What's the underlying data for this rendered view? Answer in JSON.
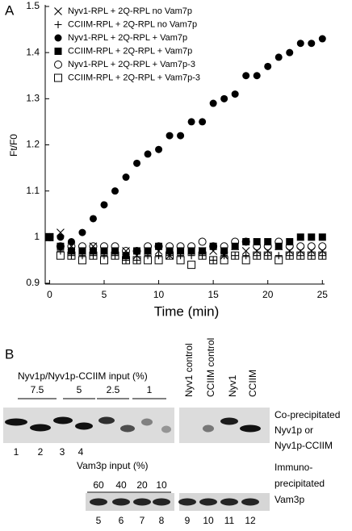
{
  "chart_data": {
    "type": "scatter",
    "panel_label": "A",
    "x_label": "Time (min)",
    "y_label": "Ft/F0",
    "xlim": [
      -0.4,
      25.2
    ],
    "xticks": [
      0,
      5,
      10,
      15,
      20,
      25
    ],
    "ylim": [
      0.9,
      1.5
    ],
    "yticks": [
      0.9,
      1,
      1.1,
      1.2,
      1.3,
      1.4,
      1.5
    ],
    "legend": "upper-left",
    "x": [
      0,
      1,
      2,
      3,
      4,
      5,
      6,
      7,
      8,
      9,
      10,
      11,
      12,
      13,
      14,
      15,
      16,
      17,
      18,
      19,
      20,
      21,
      22,
      23,
      24,
      25
    ],
    "series": [
      {
        "name": "Nyv1-RPL + 2Q-RPL no Vam7p",
        "color": "#000000",
        "marker": "cross",
        "values": [
          1.0,
          1.01,
          0.98,
          0.97,
          0.98,
          0.97,
          0.97,
          0.97,
          0.96,
          0.97,
          0.97,
          0.96,
          0.97,
          0.97,
          0.97,
          0.97,
          0.96,
          0.98,
          0.97,
          0.97,
          0.97,
          0.98,
          0.97,
          0.97,
          0.97,
          0.97
        ]
      },
      {
        "name": "CCIIM-RPL + 2Q-RPL no Vam7p",
        "color": "#000000",
        "marker": "plus",
        "values": [
          1.0,
          0.97,
          0.96,
          0.96,
          0.96,
          0.96,
          0.96,
          0.95,
          0.95,
          0.96,
          0.96,
          0.96,
          0.96,
          0.96,
          0.96,
          0.95,
          0.96,
          0.96,
          0.96,
          0.96,
          0.96,
          0.96,
          0.96,
          0.96,
          0.96,
          0.96
        ]
      },
      {
        "name": "Nyv1-RPL + 2Q-RPL + Vam7p",
        "color": "#000000",
        "marker": "filled-circle",
        "values": [
          1.0,
          1.0,
          0.99,
          1.01,
          1.04,
          1.07,
          1.1,
          1.13,
          1.16,
          1.18,
          1.19,
          1.22,
          1.22,
          1.25,
          1.25,
          1.29,
          1.3,
          1.31,
          1.35,
          1.35,
          1.37,
          1.39,
          1.4,
          1.42,
          1.42,
          1.43
        ]
      },
      {
        "name": "CCIIM-RPL + 2Q-RPL + Vam7p",
        "color": "#000000",
        "marker": "filled-square",
        "values": [
          1.0,
          0.98,
          0.97,
          0.97,
          0.97,
          0.97,
          0.97,
          0.96,
          0.97,
          0.97,
          0.98,
          0.97,
          0.97,
          0.97,
          0.97,
          0.98,
          0.97,
          0.98,
          0.99,
          0.99,
          0.99,
          0.98,
          0.99,
          1.0,
          1.0,
          1.0
        ]
      },
      {
        "name": "Nyv1-RPL + 2Q-RPL + Vam7p-3",
        "color": "#000000",
        "marker": "open-circle",
        "values": [
          1.0,
          0.98,
          0.98,
          0.98,
          0.98,
          0.98,
          0.98,
          0.97,
          0.97,
          0.98,
          0.98,
          0.98,
          0.98,
          0.98,
          0.99,
          0.98,
          0.98,
          0.99,
          0.99,
          0.98,
          0.98,
          0.99,
          0.98,
          0.98,
          0.98,
          0.98
        ]
      },
      {
        "name": "CCIIM-RPL + 2Q-RPL + Vam7p-3",
        "color": "#000000",
        "marker": "open-square",
        "values": [
          1.0,
          0.96,
          0.96,
          0.95,
          0.96,
          0.95,
          0.96,
          0.95,
          0.95,
          0.95,
          0.95,
          0.96,
          0.95,
          0.94,
          0.96,
          0.95,
          0.95,
          0.96,
          0.95,
          0.96,
          0.96,
          0.95,
          0.96,
          0.96,
          0.96,
          0.96
        ]
      }
    ]
  },
  "panel_b": {
    "panel_label": "B",
    "input_title": "Nyv1p/Nyv1p-CCIIM input (%)",
    "input_levels": [
      "7.5",
      "5",
      "2.5",
      "1"
    ],
    "control_lanes": [
      "Nyv1 control",
      "CCIIM control",
      "Nyv1",
      "CCIIM"
    ],
    "top_lane_numbers": [
      "1",
      "2",
      "3",
      "4"
    ],
    "top_blot_label": [
      "Co-precipitated",
      "Nyv1p or",
      "Nyv1p-CCIIM"
    ],
    "vam3_title": "Vam3p input (%)",
    "vam3_levels": [
      "60",
      "40",
      "20",
      "10"
    ],
    "bottom_lane_numbers": [
      "5",
      "6",
      "7",
      "8",
      "9",
      "10",
      "11",
      "12"
    ],
    "bottom_blot_label": [
      "Immuno-",
      "precipitated",
      "Vam3p"
    ]
  }
}
